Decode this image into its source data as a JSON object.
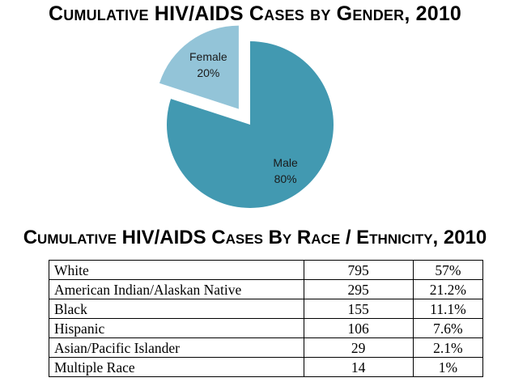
{
  "chart_data": [
    {
      "type": "pie",
      "title": "Cumulative HIV/AIDS Cases by Gender, 2010",
      "slices": [
        {
          "label": "Male",
          "value": 80,
          "value_label": "80%",
          "color": "#4299b1",
          "exploded": false
        },
        {
          "label": "Female",
          "value": 20,
          "value_label": "20%",
          "color": "#93c4d8",
          "exploded": true
        }
      ]
    },
    {
      "type": "table",
      "title": "Cumulative HIV/AIDS Cases By Race / Ethnicity, 2010",
      "rows": [
        {
          "label": "White",
          "count": "795",
          "percent": "57%"
        },
        {
          "label": "American Indian/Alaskan Native",
          "count": "295",
          "percent": "21.2%"
        },
        {
          "label": "Black",
          "count": "155",
          "percent": "11.1%"
        },
        {
          "label": "Hispanic",
          "count": "106",
          "percent": "7.6%"
        },
        {
          "label": "Asian/Pacific Islander",
          "count": "29",
          "percent": "2.1%"
        },
        {
          "label": "Multiple Race",
          "count": "14",
          "percent": "1%"
        }
      ]
    }
  ]
}
